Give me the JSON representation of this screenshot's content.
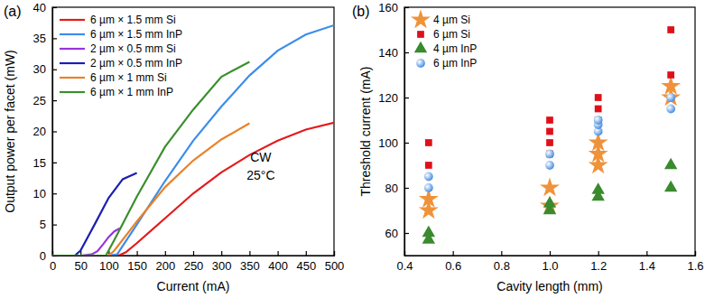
{
  "chart_data": [
    {
      "type": "line",
      "title": "(a)",
      "x_label": "Current (mA)",
      "y_label": "Output power per facet (mW)",
      "annotations": [
        "CW",
        "25°C"
      ],
      "xlim": [
        0,
        500
      ],
      "xticks": [
        0,
        50,
        100,
        150,
        200,
        250,
        300,
        350,
        400,
        450,
        500
      ],
      "ylim": [
        0,
        40
      ],
      "yticks": [
        0,
        5,
        10,
        15,
        20,
        25,
        30,
        35,
        40
      ],
      "legend": "top-left",
      "series": [
        {
          "name": "6 µm × 1.5 mm Si",
          "color": "#e41a1c",
          "x": [
            0,
            50,
            100,
            120,
            130,
            150,
            200,
            250,
            300,
            350,
            400,
            450,
            500
          ],
          "values": [
            0,
            0,
            0,
            0.1,
            0.5,
            2,
            6,
            10,
            13.4,
            16.2,
            18.5,
            20.3,
            21.4
          ]
        },
        {
          "name": "6 µm × 1.5 mm InP",
          "color": "#3c8dea",
          "x": [
            0,
            50,
            100,
            115,
            150,
            200,
            250,
            300,
            350,
            400,
            450,
            500
          ],
          "values": [
            0,
            0,
            0,
            0.2,
            5,
            12,
            18.5,
            24,
            29,
            33,
            35.6,
            37.1
          ]
        },
        {
          "name": "2 µm × 0.5 mm Si",
          "color": "#9933dd",
          "x": [
            0,
            50,
            70,
            80,
            90,
            100,
            110,
            120
          ],
          "values": [
            0,
            0,
            0.2,
            0.7,
            1.8,
            3,
            3.9,
            4.4
          ]
        },
        {
          "name": "2 µm × 0.5 mm InP",
          "color": "#1b1fb0",
          "x": [
            0,
            40,
            50,
            75,
            100,
            125,
            150
          ],
          "values": [
            0,
            0,
            0.8,
            5,
            9.3,
            12.3,
            13.3
          ]
        },
        {
          "name": "6 µm × 1 mm Si",
          "color": "#e8822a",
          "x": [
            0,
            50,
            100,
            110,
            150,
            200,
            250,
            300,
            350
          ],
          "values": [
            0,
            0,
            0,
            0.8,
            5.5,
            11,
            15.3,
            18.7,
            21.3
          ]
        },
        {
          "name": "6 µm × 1 mm InP",
          "color": "#3b8f2e",
          "x": [
            0,
            50,
            95,
            110,
            150,
            200,
            250,
            300,
            350
          ],
          "values": [
            0,
            0,
            0,
            2.5,
            9.5,
            17.5,
            23.5,
            28.8,
            31.2
          ]
        }
      ]
    },
    {
      "type": "scatter",
      "title": "(b)",
      "x_label": "Cavity length (mm)",
      "y_label": "Threshold current (mA)",
      "xlim": [
        0.4,
        1.6
      ],
      "xticks": [
        0.4,
        0.6,
        0.8,
        {
          "value": 1,
          "label": "1.0"
        },
        1.2,
        1.4,
        1.6
      ],
      "ylim": [
        50,
        160
      ],
      "yticks": [
        60,
        80,
        100,
        120,
        140,
        160
      ],
      "legend": "top-left",
      "series": [
        {
          "name": "4 µm Si",
          "color": "#f0923a",
          "marker": "star",
          "x": [
            0.5,
            0.5,
            1.0,
            1.0,
            1.2,
            1.2,
            1.2,
            1.5,
            1.5
          ],
          "values": [
            70,
            75,
            72,
            80,
            90,
            95,
            100,
            120,
            125
          ]
        },
        {
          "name": "6 µm Si",
          "color": "#e0101a",
          "marker": "square",
          "x": [
            0.5,
            0.5,
            1.0,
            1.0,
            1.0,
            1.0,
            1.2,
            1.2,
            1.2,
            1.5,
            1.5
          ],
          "values": [
            90,
            100,
            95,
            100,
            105,
            110,
            110,
            115,
            120,
            130,
            150
          ]
        },
        {
          "name": "4 µm InP",
          "color": "#3a8a2e",
          "marker": "triangle",
          "x": [
            0.5,
            0.5,
            1.0,
            1.0,
            1.2,
            1.2,
            1.5,
            1.5
          ],
          "values": [
            57,
            60,
            70,
            73,
            76,
            79,
            80,
            90
          ]
        },
        {
          "name": "6 µm InP",
          "color": "#4a90e2",
          "marker": "circle",
          "x": [
            0.5,
            0.5,
            1.0,
            1.0,
            1.2,
            1.2,
            1.2,
            1.5,
            1.5
          ],
          "values": [
            80,
            85,
            90,
            95,
            105,
            108,
            110,
            115,
            120
          ]
        }
      ]
    }
  ]
}
